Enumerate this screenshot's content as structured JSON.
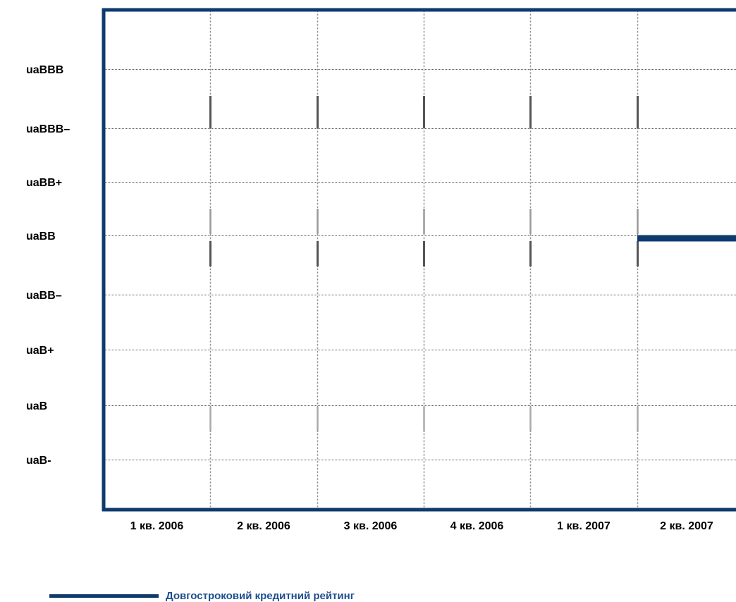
{
  "chart_data": {
    "type": "line",
    "categories": [
      "1 кв. 2006",
      "2 кв. 2006",
      "3 кв. 2006",
      "4 кв. 2006",
      "1 кв. 2007",
      "2 кв. 2007"
    ],
    "y_levels": [
      "uaBBB",
      "uaBBB–",
      "uaBB+",
      "uaBB",
      "uaBB–",
      "uaB+",
      "uaB",
      "uaB-"
    ],
    "series": [
      {
        "name": "Довгостроковий кредитний рейтинг",
        "color": "#0f3a6e",
        "values": [
          null,
          null,
          null,
          null,
          null,
          "uaBB"
        ]
      }
    ],
    "grid": true,
    "legend_position": "bottom-left"
  }
}
